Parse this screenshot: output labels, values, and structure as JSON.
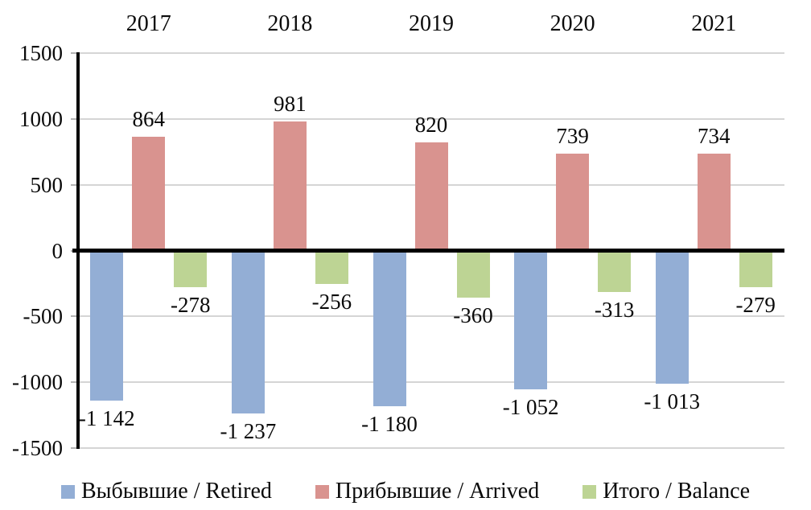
{
  "chart_data": {
    "type": "bar",
    "categories": [
      "2017",
      "2018",
      "2019",
      "2020",
      "2021"
    ],
    "series": [
      {
        "name": "Выбывшие / Retired",
        "color": "#93aed5",
        "values": [
          -1142,
          -1237,
          -1180,
          -1052,
          -1013
        ],
        "labels": [
          "-1 142",
          "-1 237",
          "-1 180",
          "-1 052",
          "-1 013"
        ]
      },
      {
        "name": "Прибывшие / Arrived",
        "color": "#d9938f",
        "values": [
          864,
          981,
          820,
          739,
          734
        ],
        "labels": [
          "864",
          "981",
          "820",
          "739",
          "734"
        ]
      },
      {
        "name": "Итого / Balance",
        "color": "#bdd494",
        "values": [
          -278,
          -256,
          -360,
          -313,
          -279
        ],
        "labels": [
          "-278",
          "-256",
          "-360",
          "-313",
          "-279"
        ]
      }
    ],
    "y_axis": {
      "min": -1500,
      "max": 1500,
      "step": 500,
      "tick_labels": [
        "1500",
        "1000",
        "500",
        "0",
        "-500",
        "-1000",
        "-1500"
      ]
    },
    "x_axis_position": "top",
    "legend_position": "bottom",
    "grid": true,
    "title": "",
    "xlabel": "",
    "ylabel": ""
  },
  "colors": {
    "background": "#ffffff",
    "gridline": "#d5d5d5",
    "axis": "#000000",
    "text": "#0a0a0a"
  }
}
